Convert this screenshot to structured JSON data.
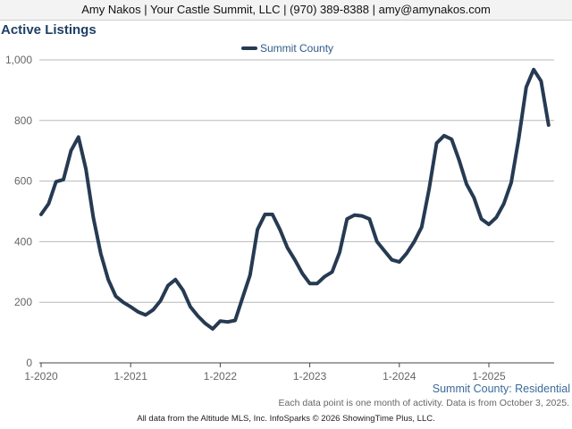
{
  "header": {
    "contact": "Amy Nakos | Your Castle Summit, LLC | (970) 389-8388 | amy@amynakos.com"
  },
  "chart_data": {
    "type": "line",
    "title": "Active Listings",
    "xlabel": "",
    "ylabel": "",
    "ylim": [
      0,
      1000
    ],
    "y_ticks": [
      {
        "value": 0,
        "label": "0"
      },
      {
        "value": 200,
        "label": "200"
      },
      {
        "value": 400,
        "label": "400"
      },
      {
        "value": 600,
        "label": "600"
      },
      {
        "value": 800,
        "label": "800"
      },
      {
        "value": 1000,
        "label": "1,000"
      }
    ],
    "x_ticks": [
      {
        "index": 0,
        "label": "1-2020"
      },
      {
        "index": 12,
        "label": "1-2021"
      },
      {
        "index": 24,
        "label": "1-2022"
      },
      {
        "index": 36,
        "label": "1-2023"
      },
      {
        "index": 48,
        "label": "1-2024"
      },
      {
        "index": 60,
        "label": "1-2025"
      }
    ],
    "grid": true,
    "legend_position": "top-center",
    "series_color": "#263a52",
    "series": [
      {
        "name": "Summit County",
        "start": "2020-01",
        "values": [
          490,
          525,
          598,
          605,
          700,
          745,
          640,
          480,
          360,
          275,
          220,
          200,
          185,
          168,
          158,
          175,
          205,
          255,
          275,
          240,
          185,
          155,
          130,
          112,
          138,
          135,
          140,
          215,
          290,
          440,
          490,
          490,
          440,
          380,
          340,
          295,
          262,
          262,
          285,
          300,
          365,
          475,
          488,
          485,
          475,
          400,
          370,
          340,
          333,
          362,
          400,
          448,
          575,
          725,
          750,
          738,
          670,
          590,
          545,
          475,
          457,
          480,
          525,
          595,
          740,
          910,
          968,
          930,
          785
        ]
      }
    ]
  },
  "caption": "Summit County: Residential",
  "note": "Each data point is one month of activity. Data is from October 3, 2025.",
  "footer": "All data from the Altitude MLS, Inc. InfoSparks © 2026 ShowingTime Plus, LLC."
}
